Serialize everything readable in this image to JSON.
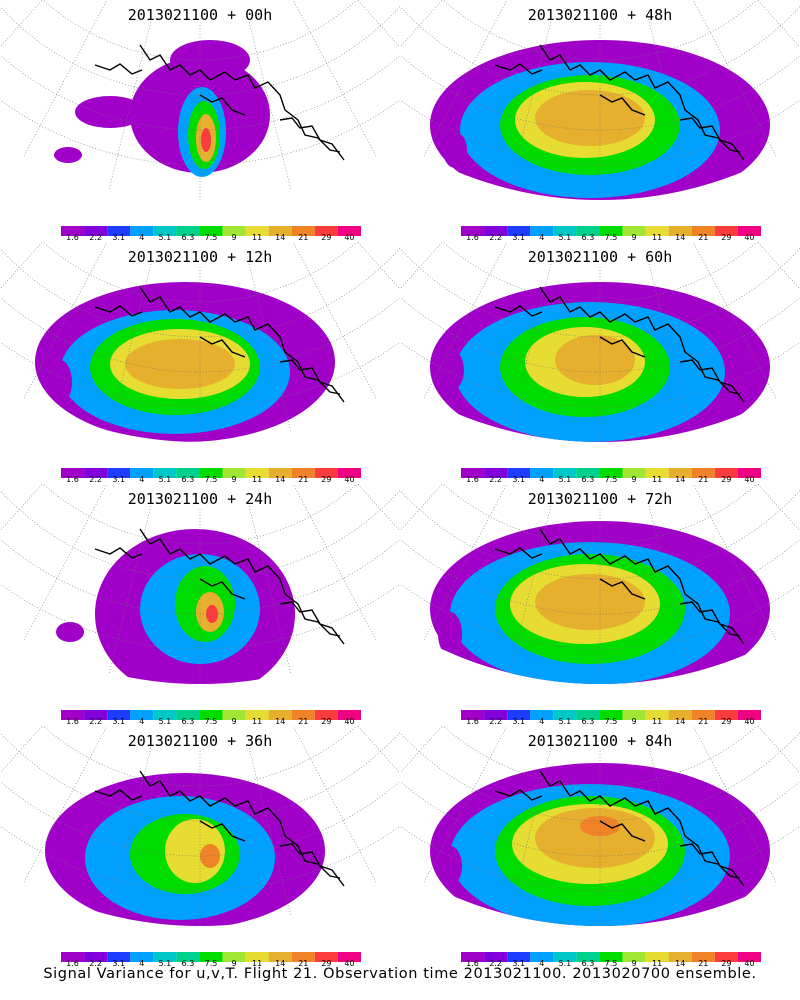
{
  "caption": "Signal Variance for u,v,T. Flight 21. Observation time 2013021100. 2013020700 ensemble.",
  "panels": [
    {
      "title": "2013021100 + 00h",
      "stage": 0
    },
    {
      "title": "2013021100 + 48h",
      "stage": 4
    },
    {
      "title": "2013021100 + 12h",
      "stage": 1
    },
    {
      "title": "2013021100 + 60h",
      "stage": 5
    },
    {
      "title": "2013021100 + 24h",
      "stage": 2
    },
    {
      "title": "2013021100 + 72h",
      "stage": 6
    },
    {
      "title": "2013021100 + 36h",
      "stage": 3
    },
    {
      "title": "2013021100 + 84h",
      "stage": 7
    }
  ],
  "legend": {
    "labels": [
      "1.6",
      "2.2",
      "3.1",
      "4",
      "5.1",
      "6.3",
      "7.5",
      "9",
      "11",
      "14",
      "21",
      "29",
      "40"
    ],
    "colors": [
      "#a000c8",
      "#8200dc",
      "#1e3cff",
      "#00a0ff",
      "#00c8c8",
      "#00d28c",
      "#00dc00",
      "#a0e632",
      "#e6dc32",
      "#e6af2d",
      "#f08228",
      "#fa3c3c",
      "#f00082"
    ]
  }
}
